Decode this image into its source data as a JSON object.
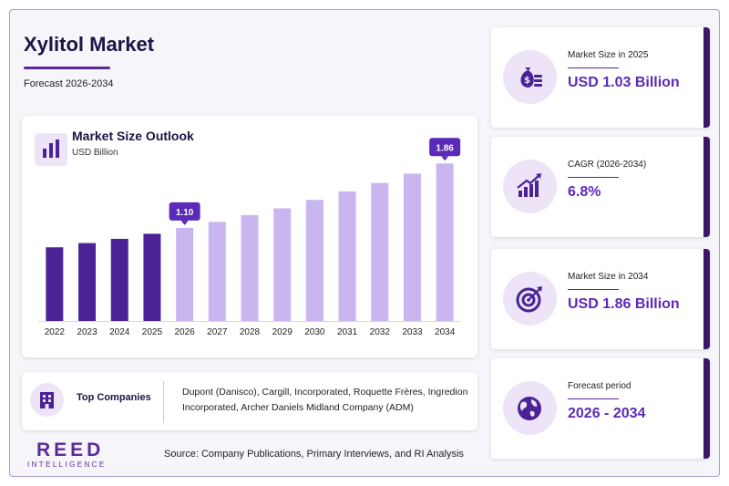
{
  "header": {
    "title": "Xylitol Market",
    "subtitle": "Forecast 2026-2034"
  },
  "chart_panel": {
    "title": "Market Size Outlook",
    "unit": "USD Billion"
  },
  "chart_data": {
    "type": "bar",
    "title": "Market Size Outlook",
    "ylabel": "USD Billion",
    "categories": [
      "2022",
      "2023",
      "2024",
      "2025",
      "2026",
      "2027",
      "2028",
      "2029",
      "2030",
      "2031",
      "2032",
      "2033",
      "2034"
    ],
    "values": [
      0.87,
      0.92,
      0.97,
      1.03,
      1.1,
      1.17,
      1.25,
      1.33,
      1.43,
      1.53,
      1.63,
      1.74,
      1.86
    ],
    "callouts": [
      {
        "category": "2026",
        "label": "1.10"
      },
      {
        "category": "2034",
        "label": "1.86"
      }
    ],
    "historical_color": "#4b2396",
    "forecast_color": "#c9b6f0",
    "callout_color": "#5a2ab8",
    "ylim": [
      0,
      2.1
    ]
  },
  "companies": {
    "label": "Top Companies",
    "text": "Dupont (Danisco), Cargill, Incorporated, Roquette Frères, Ingredion Incorporated, Archer Daniels Midland Company (ADM)"
  },
  "kpis": [
    {
      "label": "Market Size in 2025",
      "value": "USD 1.03 Billion",
      "icon": "money-bag-icon"
    },
    {
      "label": "CAGR (2026-2034)",
      "value": "6.8%",
      "icon": "growth-chart-icon"
    },
    {
      "label": "Market Size in 2034",
      "value": "USD 1.86 Billion",
      "icon": "target-icon"
    },
    {
      "label": "Forecast period",
      "value": "2026 - 2034",
      "icon": "globe-icon"
    }
  ],
  "logo": {
    "main": "REED",
    "sub": "INTELLIGENCE"
  },
  "source": "Source: Company Publications, Primary Interviews, and RI Analysis",
  "colors": {
    "accent": "#5a2a9c",
    "value_text": "#5a2ab8",
    "title_text": "#1c1446",
    "icon_bg": "#ede4f8",
    "kpi_border": "#3b1866"
  }
}
